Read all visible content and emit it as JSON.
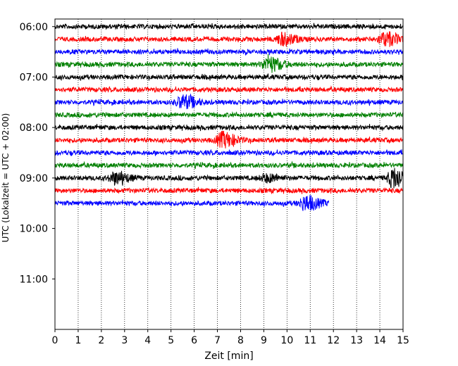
{
  "chart_data": {
    "type": "line",
    "title": "",
    "xlabel": "Zeit  [min]",
    "ylabel": "UTC (Lokalzeit = UTC + 02:00)",
    "xlim": [
      0,
      15
    ],
    "x_ticks": [
      0,
      1,
      2,
      3,
      4,
      5,
      6,
      7,
      8,
      9,
      10,
      11,
      12,
      13,
      14,
      15
    ],
    "y_tick_labels": [
      "06:00",
      "07:00",
      "08:00",
      "09:00",
      "10:00",
      "11:00"
    ],
    "y_tick_hours": [
      6,
      7,
      8,
      9,
      10,
      11
    ],
    "ylim_hours": [
      5.85,
      12.0
    ],
    "grid": {
      "x": true,
      "y": false,
      "x_style": "dotted"
    },
    "row_colors": [
      "#000000",
      "#ff0000",
      "#0000ff",
      "#008000"
    ],
    "traces": [
      {
        "start": "06:00",
        "end_minute": 15,
        "events": []
      },
      {
        "start": "06:15",
        "end_minute": 15,
        "events": [
          {
            "minute": 9.8,
            "amplitude": 8
          },
          {
            "minute": 14.2,
            "amplitude": 9
          }
        ]
      },
      {
        "start": "06:30",
        "end_minute": 15,
        "events": []
      },
      {
        "start": "06:45",
        "end_minute": 15,
        "events": [
          {
            "minute": 9.2,
            "amplitude": 10
          }
        ]
      },
      {
        "start": "07:00",
        "end_minute": 15,
        "events": []
      },
      {
        "start": "07:15",
        "end_minute": 15,
        "events": []
      },
      {
        "start": "07:30",
        "end_minute": 15,
        "events": [
          {
            "minute": 5.5,
            "amplitude": 9
          }
        ]
      },
      {
        "start": "07:45",
        "end_minute": 15,
        "events": []
      },
      {
        "start": "08:00",
        "end_minute": 15,
        "events": []
      },
      {
        "start": "08:15",
        "end_minute": 15,
        "events": [
          {
            "minute": 7.2,
            "amplitude": 10
          }
        ]
      },
      {
        "start": "08:30",
        "end_minute": 15,
        "events": []
      },
      {
        "start": "08:45",
        "end_minute": 15,
        "events": []
      },
      {
        "start": "09:00",
        "end_minute": 15,
        "events": [
          {
            "minute": 2.6,
            "amplitude": 8
          },
          {
            "minute": 9.1,
            "amplitude": 5
          },
          {
            "minute": 14.6,
            "amplitude": 14
          }
        ]
      },
      {
        "start": "09:15",
        "end_minute": 15,
        "events": []
      },
      {
        "start": "09:30",
        "end_minute": 11.8,
        "events": [
          {
            "minute": 10.8,
            "amplitude": 10
          }
        ]
      }
    ]
  }
}
